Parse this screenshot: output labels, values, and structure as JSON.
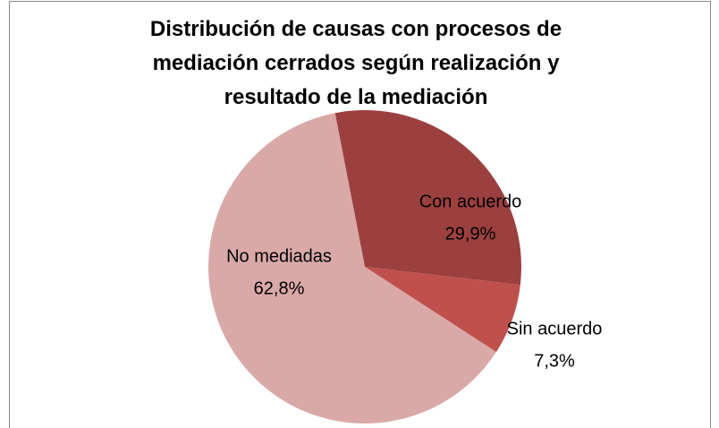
{
  "chart_data": {
    "type": "pie",
    "title": "Distribución de causas con procesos de mediación cerrados según realización y resultado de la mediación",
    "categories": [
      "Con acuerdo",
      "Sin acuerdo",
      "No mediadas"
    ],
    "values": [
      29.9,
      7.3,
      62.8
    ],
    "value_labels": [
      "29,9%",
      "7,3%",
      "62,8%"
    ],
    "colors": [
      "#9c403f",
      "#c0504d",
      "#d9a9a8"
    ]
  }
}
